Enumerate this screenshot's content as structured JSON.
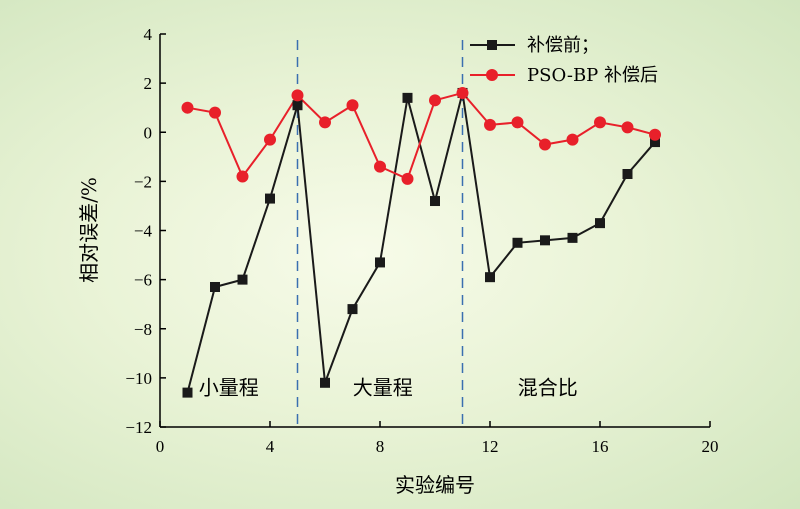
{
  "chart_data": {
    "type": "line",
    "title": "",
    "xlabel": "实验编号",
    "ylabel": "相对误差/%",
    "xlim": [
      0,
      20
    ],
    "ylim": [
      -12,
      4
    ],
    "xticks": [
      0,
      4,
      8,
      12,
      16,
      20
    ],
    "yticks": [
      4,
      2,
      0,
      -2,
      -4,
      -6,
      -8,
      -10,
      -12
    ],
    "xtick_labels": [
      "0",
      "4",
      "8",
      "12",
      "16",
      "20"
    ],
    "ytick_labels": [
      "4",
      "2",
      "0",
      "−2",
      "−4",
      "−6",
      "−8",
      "−10",
      "−12"
    ],
    "x": [
      1,
      2,
      3,
      4,
      5,
      6,
      7,
      8,
      9,
      10,
      11,
      12,
      13,
      14,
      15,
      16,
      17,
      18
    ],
    "series": [
      {
        "name": "补偿前；",
        "color": "#1a1a1a",
        "marker": "square",
        "values": [
          -10.6,
          -6.3,
          -6.0,
          -2.7,
          1.1,
          -10.2,
          -7.2,
          -5.3,
          1.4,
          -2.8,
          1.6,
          -5.9,
          -4.5,
          -4.4,
          -4.3,
          -3.7,
          -1.7,
          -0.4
        ]
      },
      {
        "name": "PSO-BP 补偿后",
        "color": "#e8202a",
        "marker": "circle",
        "values": [
          1.0,
          0.8,
          -1.8,
          -0.3,
          1.5,
          0.4,
          1.1,
          -1.4,
          -1.9,
          1.3,
          1.6,
          0.3,
          0.4,
          -0.5,
          -0.3,
          0.4,
          0.2,
          -0.1
        ]
      }
    ],
    "dividers": [
      5,
      11
    ],
    "divider_color": "#3a6fb0",
    "regions": [
      {
        "label": "小量程",
        "x": 2.5,
        "y": -10.4
      },
      {
        "label": "大量程",
        "x": 8.1,
        "y": -10.4
      },
      {
        "label": "混合比",
        "x": 14.1,
        "y": -10.4
      }
    ],
    "legend_position": "top-right",
    "grid": false
  }
}
